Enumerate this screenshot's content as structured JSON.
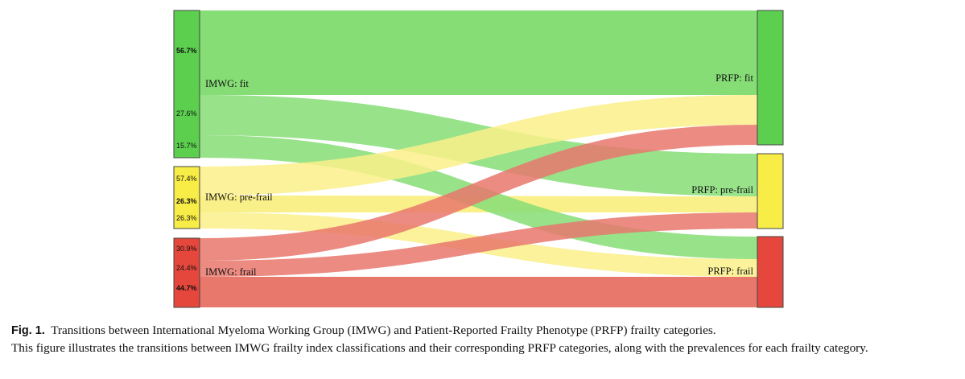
{
  "diagram": {
    "colors": {
      "fit_node": "#5ccf4f",
      "fit_flow": "#86dd76",
      "prefrail_node": "#f8ec46",
      "prefrail_flow": "#faf08a",
      "frail_node": "#e5473c",
      "frail_flow": "#e8776c",
      "border": "#444444"
    },
    "left_nodes": [
      {
        "key": "fit",
        "label": "IMWG: fit",
        "color_key": "fit",
        "breakdown": [
          {
            "pct": "56.7%",
            "bold": true
          },
          {
            "pct": "27.6%",
            "bold": false
          },
          {
            "pct": "15.7%",
            "bold": false
          }
        ]
      },
      {
        "key": "prefrail",
        "label": "IMWG: pre-frail",
        "color_key": "prefrail",
        "breakdown": [
          {
            "pct": "57.4%",
            "bold": false
          },
          {
            "pct": "26.3%",
            "bold": true
          },
          {
            "pct": "26.3%",
            "bold": false
          }
        ]
      },
      {
        "key": "frail",
        "label": "IMWG: frail",
        "color_key": "frail",
        "breakdown": [
          {
            "pct": "30.9%",
            "bold": false
          },
          {
            "pct": "24.4%",
            "bold": false
          },
          {
            "pct": "44.7%",
            "bold": true
          }
        ]
      }
    ],
    "right_nodes": [
      {
        "key": "fit",
        "label": "PRFP: fit",
        "color_key": "fit"
      },
      {
        "key": "prefrail",
        "label": "PRFP: pre-frail",
        "color_key": "prefrail"
      },
      {
        "key": "frail",
        "label": "PRFP: frail",
        "color_key": "frail"
      }
    ],
    "flows": [
      {
        "from": "fit",
        "to": "fit",
        "share": "56.7%"
      },
      {
        "from": "fit",
        "to": "prefrail",
        "share": "27.6%"
      },
      {
        "from": "fit",
        "to": "frail",
        "share": "15.7%"
      },
      {
        "from": "prefrail",
        "to": "fit",
        "share": "57.4%"
      },
      {
        "from": "prefrail",
        "to": "prefrail",
        "share": "26.3%"
      },
      {
        "from": "prefrail",
        "to": "frail",
        "share": "26.3%"
      },
      {
        "from": "frail",
        "to": "fit",
        "share": "30.9%"
      },
      {
        "from": "frail",
        "to": "prefrail",
        "share": "24.4%"
      },
      {
        "from": "frail",
        "to": "frail",
        "share": "44.7%"
      }
    ]
  },
  "caption": {
    "label": "Fig. 1.",
    "title": "Transitions between International Myeloma Working Group (IMWG) and Patient-Reported Frailty Phenotype (PRFP) frailty categories.",
    "description": "This figure illustrates the transitions between IMWG frailty index classifications and their corresponding PRFP categories, along with the prevalences for each frailty category."
  }
}
